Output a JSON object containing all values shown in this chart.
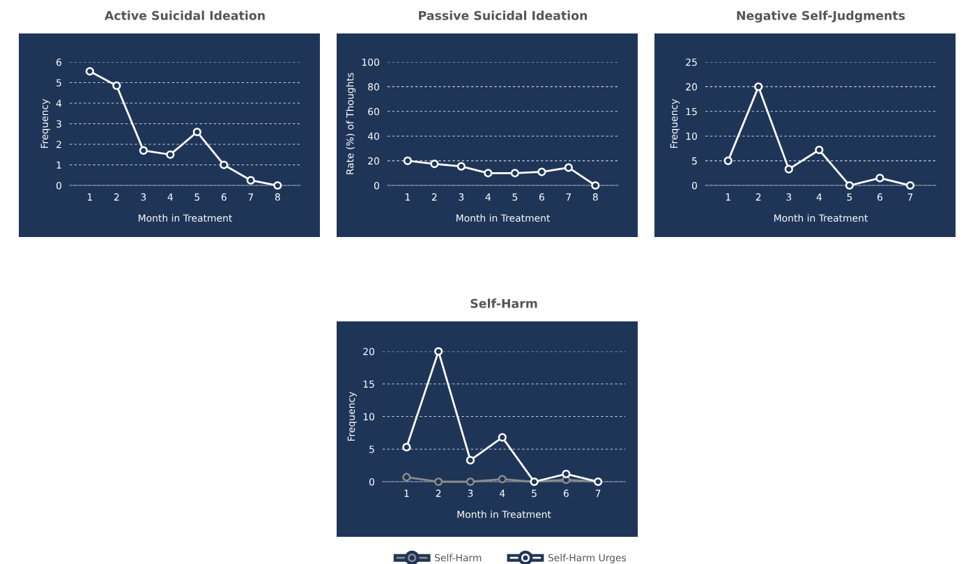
{
  "chart_data": [
    {
      "type": "line",
      "title": "Active Suicidal Ideation",
      "xlabel": "Month in Treatment",
      "ylabel": "Frequency",
      "categories": [
        "1",
        "2",
        "3",
        "4",
        "5",
        "6",
        "7",
        "8"
      ],
      "ylim": [
        0,
        6
      ],
      "yticks": [
        0,
        1,
        2,
        3,
        4,
        5,
        6
      ],
      "grid": "y",
      "marker": "circle",
      "line_style": "solid",
      "series": [
        {
          "color": "#ffffff",
          "values": [
            5.55,
            4.85,
            1.7,
            1.5,
            2.6,
            1.0,
            0.25,
            0
          ]
        }
      ]
    },
    {
      "type": "line",
      "title": "Passive Suicidal Ideation",
      "xlabel": "Month in Treatment",
      "ylabel": "Rate (%) of Thoughts",
      "categories": [
        "1",
        "2",
        "3",
        "4",
        "5",
        "6",
        "7",
        "8"
      ],
      "ylim": [
        0,
        100
      ],
      "yticks": [
        0,
        20,
        40,
        60,
        80,
        100
      ],
      "grid": "y",
      "marker": "circle",
      "line_style": "solid",
      "series": [
        {
          "color": "#ffffff",
          "values": [
            20,
            17.5,
            15.5,
            10,
            10,
            11,
            14.5,
            0
          ]
        }
      ]
    },
    {
      "type": "line",
      "title": "Negative Self-Judgments",
      "xlabel": "Month in Treatment",
      "ylabel": "Frequency",
      "categories": [
        "1",
        "2",
        "3",
        "4",
        "5",
        "6",
        "7"
      ],
      "ylim": [
        0,
        25
      ],
      "yticks": [
        0,
        5,
        10,
        15,
        20,
        25
      ],
      "grid": "y",
      "marker": "circle",
      "line_style": "solid",
      "series": [
        {
          "color": "#ffffff",
          "values": [
            5,
            20,
            3.3,
            7.2,
            0,
            1.5,
            0
          ]
        }
      ]
    },
    {
      "type": "line",
      "title": "Self-Harm",
      "xlabel": "Month in Treatment",
      "ylabel": "Frequency",
      "categories": [
        "1",
        "2",
        "3",
        "4",
        "5",
        "6",
        "7"
      ],
      "ylim": [
        0,
        20
      ],
      "yticks": [
        0,
        5,
        10,
        15,
        20
      ],
      "grid": "y",
      "marker": "circle",
      "line_style": "solid",
      "legend": "bottom",
      "series": [
        {
          "name": "Self-Harm",
          "color": "#8c8c8c",
          "values": [
            0.7,
            0,
            0,
            0.4,
            0,
            0.3,
            0
          ]
        },
        {
          "name": "Self-Harm Urges",
          "color": "#ffffff",
          "values": [
            5.3,
            20,
            3.3,
            6.8,
            0,
            1.2,
            0
          ]
        }
      ]
    }
  ]
}
